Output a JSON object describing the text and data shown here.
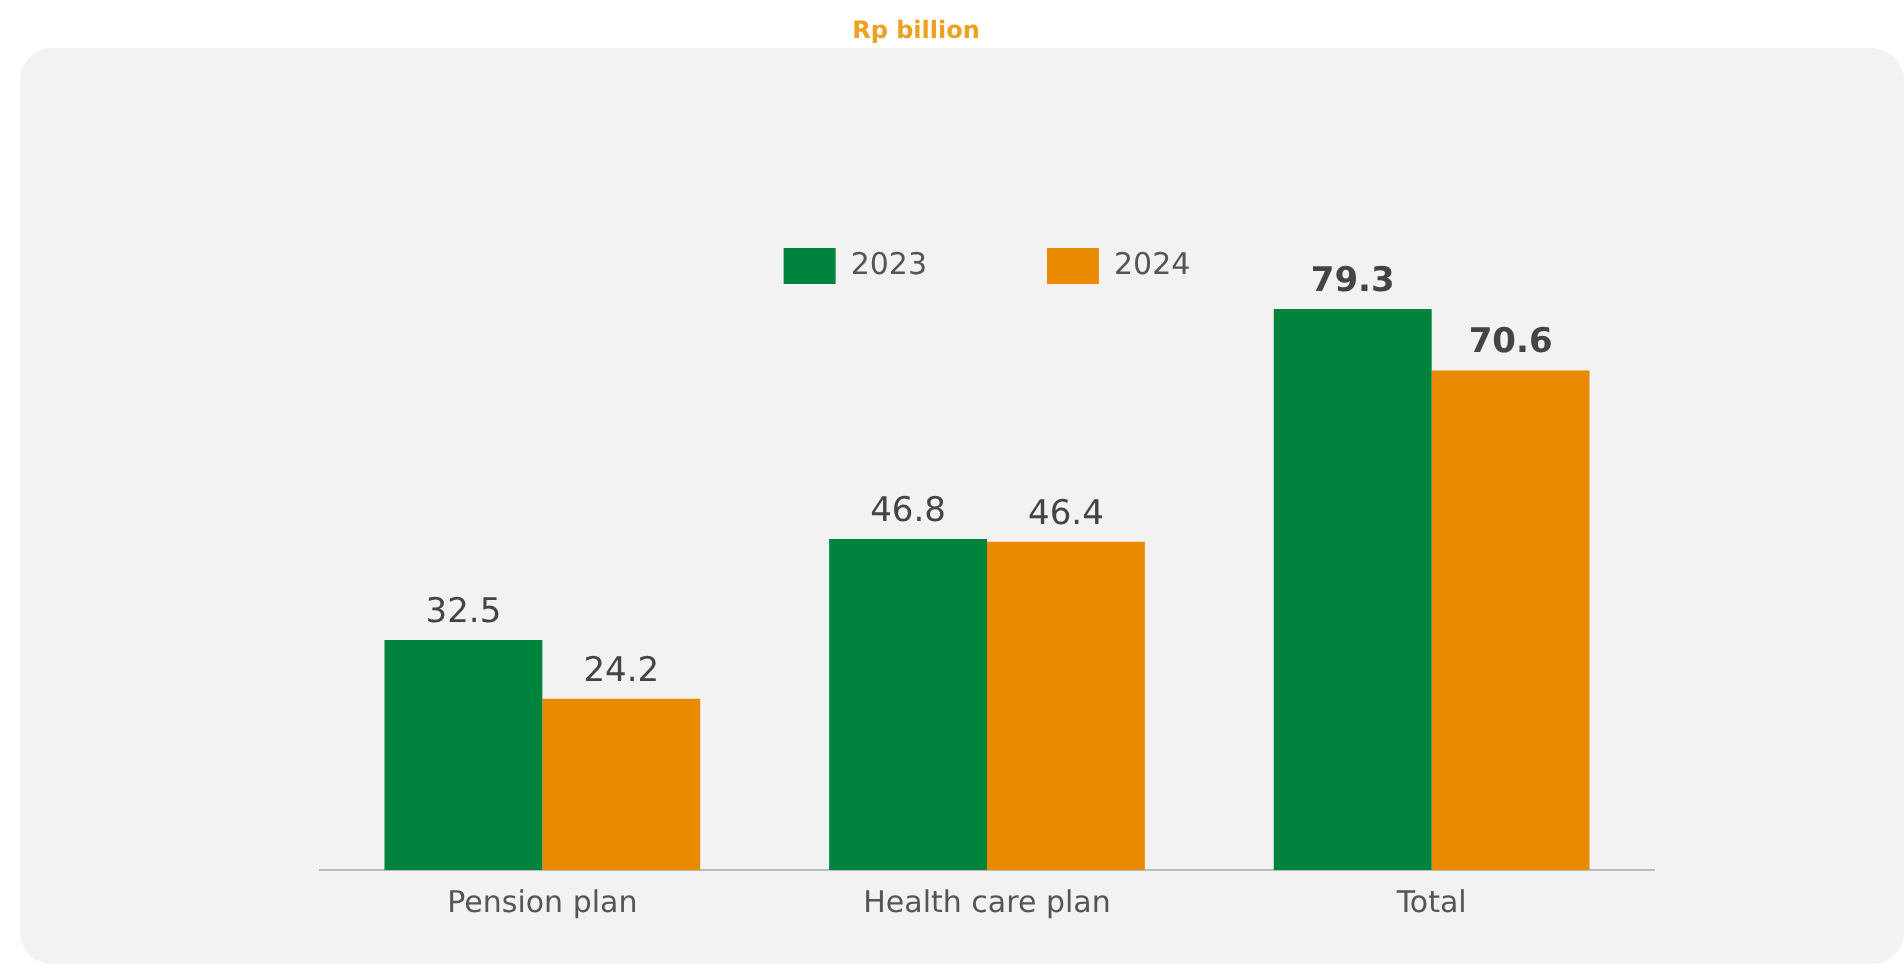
{
  "chart_data": {
    "type": "bar",
    "subtitle": "Rp billion",
    "categories": [
      "Pension plan",
      "Health care plan",
      "Total"
    ],
    "series": [
      {
        "name": "2023",
        "color": "#00843d",
        "values": [
          32.5,
          46.8,
          79.3
        ]
      },
      {
        "name": "2024",
        "color": "#ea8a00",
        "values": [
          24.2,
          46.4,
          70.6
        ]
      }
    ],
    "data_labels": true,
    "legend": "top",
    "grid": false
  }
}
